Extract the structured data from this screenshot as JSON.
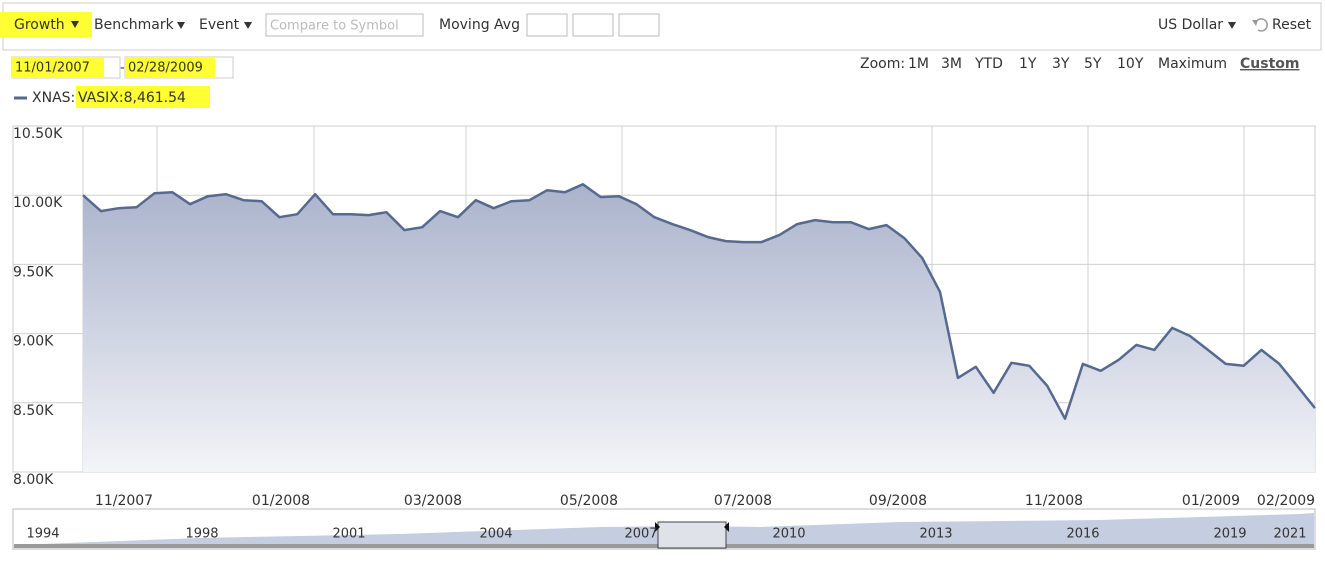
{
  "toolbar": {
    "growth": "Growth",
    "benchmark": "Benchmark",
    "event": "Event",
    "compare_placeholder": "Compare to Symbol",
    "moving_avg": "Moving Avg",
    "currency": "US Dollar",
    "reset": "Reset"
  },
  "date_range": {
    "from": "11/01/2007",
    "separator": "-",
    "to": "02/28/2009"
  },
  "zoom": {
    "label": "Zoom:",
    "options": [
      "1M",
      "3M",
      "YTD",
      "1Y",
      "3Y",
      "5Y",
      "10Y",
      "Maximum",
      "Custom"
    ]
  },
  "legend": {
    "prefix": "XNAS:",
    "value": "VASIX:8,461.54"
  },
  "chart_data": {
    "type": "line",
    "color": "#56698f",
    "ylim": [
      8000,
      10500
    ],
    "yticks": [
      {
        "value": 8000,
        "label": "8.00K"
      },
      {
        "value": 8500,
        "label": "8.50K"
      },
      {
        "value": 9000,
        "label": "9.00K"
      },
      {
        "value": 9500,
        "label": "9.50K"
      },
      {
        "value": 10000,
        "label": "10.00K"
      },
      {
        "value": 10500,
        "label": "10.50K"
      }
    ],
    "xtick_labels": [
      "11/2007",
      "01/2008",
      "03/2008",
      "05/2008",
      "07/2008",
      "09/2008",
      "11/2008",
      "01/2009",
      "02/2009"
    ],
    "values": [
      10000,
      9885,
      9906,
      9913,
      10014,
      10022,
      9935,
      9993,
      10007,
      9964,
      9957,
      9841,
      9863,
      10007,
      9863,
      9863,
      9856,
      9877,
      9748,
      9769,
      9885,
      9841,
      9964,
      9906,
      9957,
      9964,
      10036,
      10022,
      10079,
      9986,
      9993,
      9935,
      9841,
      9791,
      9748,
      9697,
      9668,
      9661,
      9661,
      9712,
      9791,
      9820,
      9805,
      9805,
      9755,
      9784,
      9690,
      9546,
      9301,
      8680,
      8760,
      8572,
      8789,
      8767,
      8623,
      8385,
      8781,
      8731,
      8810,
      8918,
      8882,
      9041,
      8983,
      8882,
      8781,
      8767,
      8882,
      8781,
      8623,
      8461.54
    ]
  },
  "navigator": {
    "years": [
      "1994",
      "1998",
      "2001",
      "2004",
      "2007",
      "2010",
      "2013",
      "2016",
      "2019",
      "2021"
    ]
  }
}
